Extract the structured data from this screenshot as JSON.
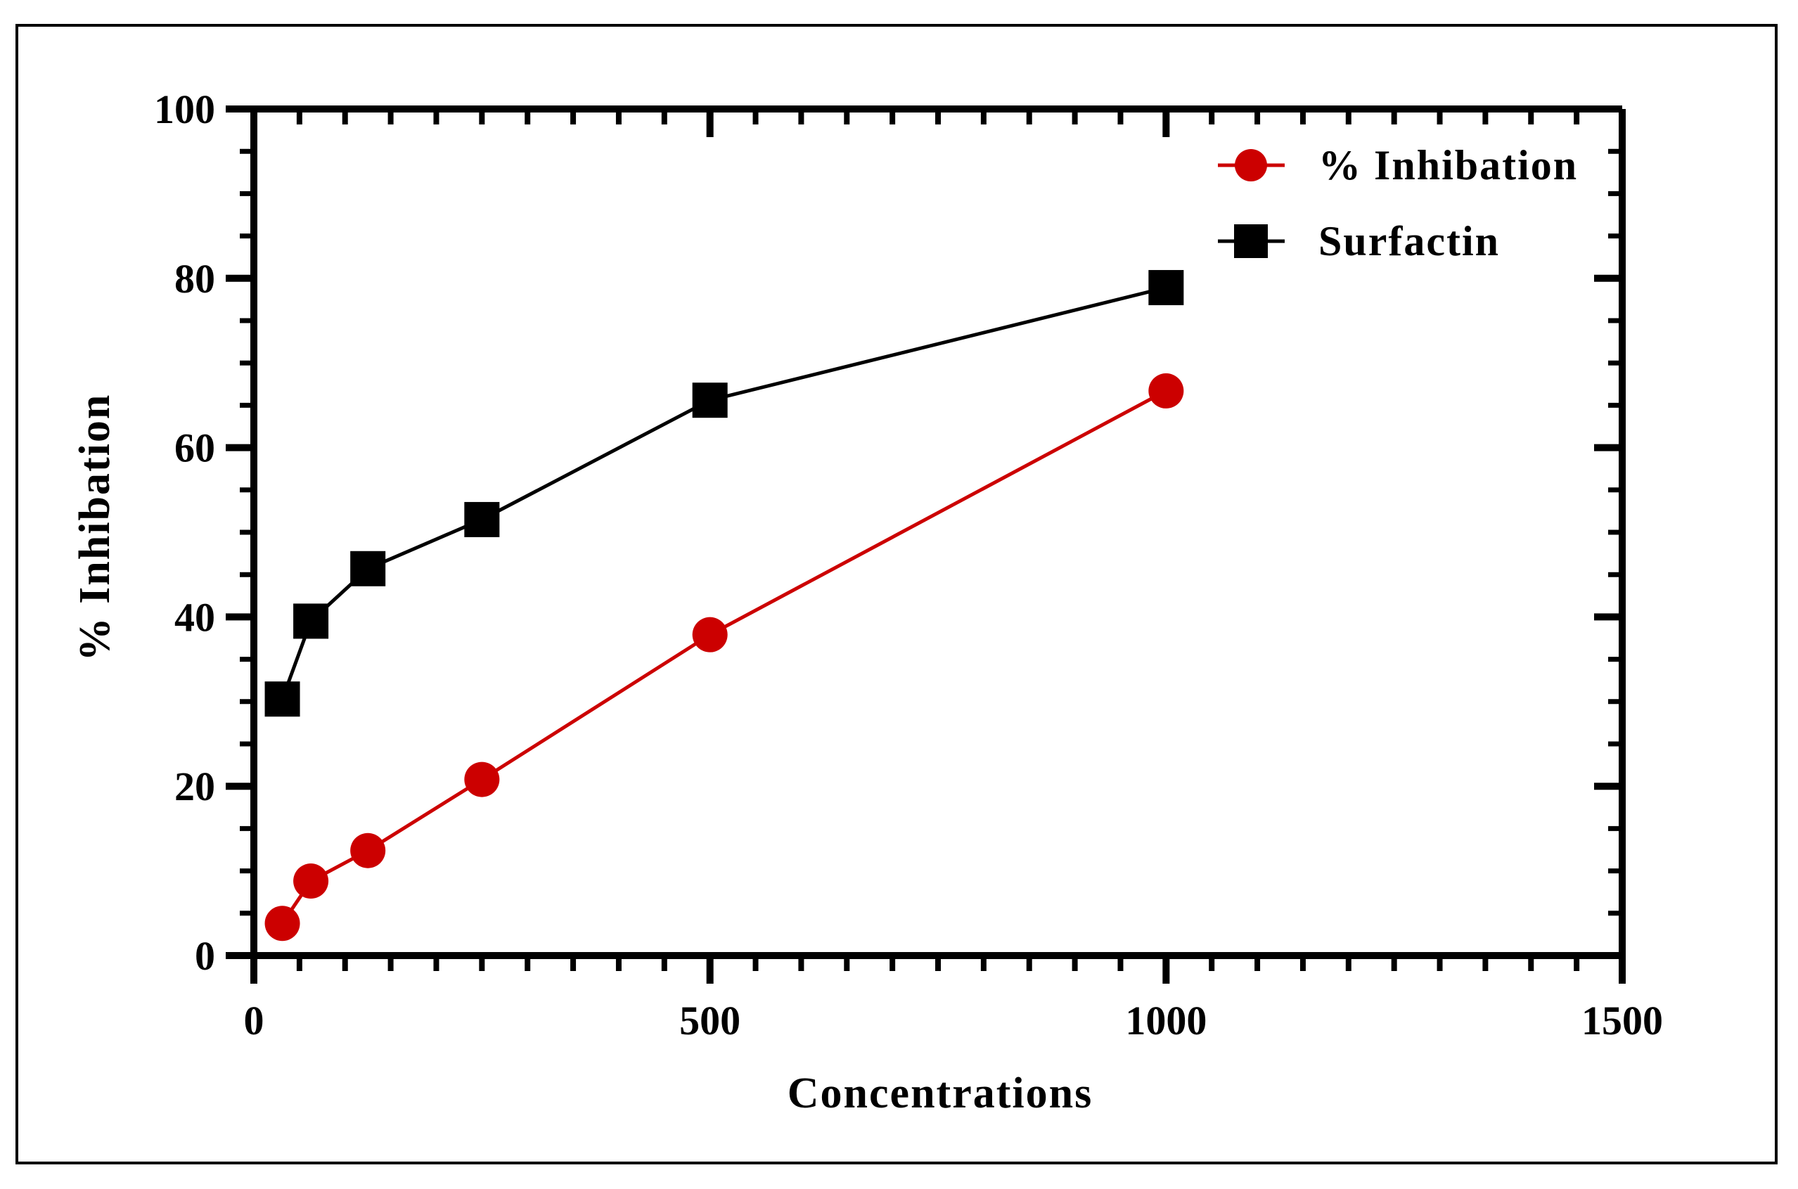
{
  "chart_data": {
    "type": "line",
    "title": "",
    "xlabel": "Concentrations",
    "ylabel": "% Inhibation",
    "xlim": [
      0,
      1500
    ],
    "ylim": [
      0,
      100
    ],
    "x_ticks": [
      "0",
      "500",
      "1000",
      "1500"
    ],
    "x_tick_values": [
      0,
      500,
      1000,
      1500
    ],
    "y_ticks": [
      "0",
      "20",
      "40",
      "60",
      "80",
      "100"
    ],
    "y_tick_values": [
      0,
      20,
      40,
      60,
      80,
      100
    ],
    "x_minor_step": 50,
    "y_minor_step": 5,
    "grid": false,
    "legend_position": "top-right",
    "series": [
      {
        "name": "% Inhibation",
        "color": "#cc0000",
        "marker": "circle",
        "x": [
          31.25,
          62.5,
          125,
          250,
          500,
          1000
        ],
        "y": [
          3.8,
          8.8,
          12.4,
          20.8,
          37.9,
          66.7
        ]
      },
      {
        "name": "Surfactin",
        "color": "#000000",
        "marker": "square",
        "x": [
          31.25,
          62.5,
          125,
          250,
          500,
          1000
        ],
        "y": [
          30.3,
          39.5,
          45.7,
          51.5,
          65.6,
          78.9
        ]
      }
    ]
  }
}
